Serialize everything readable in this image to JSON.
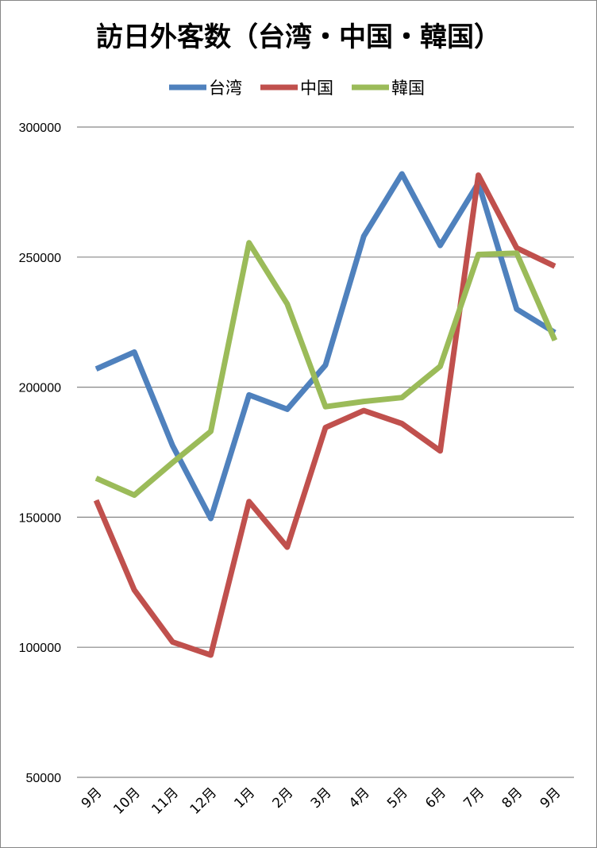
{
  "chart_data": {
    "type": "line",
    "title": "訪日外客数（台湾・中国・韓国）",
    "categories": [
      "9月",
      "10月",
      "11月",
      "12月",
      "1月",
      "2月",
      "3月",
      "4月",
      "5月",
      "6月",
      "7月",
      "8月",
      "9月"
    ],
    "series": [
      {
        "name": "台湾",
        "color": "#4f81bd",
        "values": [
          207000,
          213500,
          177500,
          149500,
          197000,
          191500,
          208500,
          258000,
          282000,
          254500,
          278500,
          230000,
          221000
        ]
      },
      {
        "name": "中国",
        "color": "#c0504d",
        "values": [
          156500,
          122000,
          102000,
          97000,
          156000,
          138500,
          184500,
          191000,
          186000,
          175500,
          281500,
          253500,
          246500
        ]
      },
      {
        "name": "韓国",
        "color": "#9bbb59",
        "values": [
          165000,
          158500,
          171000,
          183000,
          255500,
          232000,
          192500,
          194500,
          196000,
          208000,
          251000,
          251500,
          218000
        ]
      }
    ],
    "yticks": [
      "300000",
      "250000",
      "200000",
      "150000",
      "100000",
      "50000"
    ],
    "ylim": [
      50000,
      300000
    ],
    "grid": true,
    "legend_position": "top"
  }
}
